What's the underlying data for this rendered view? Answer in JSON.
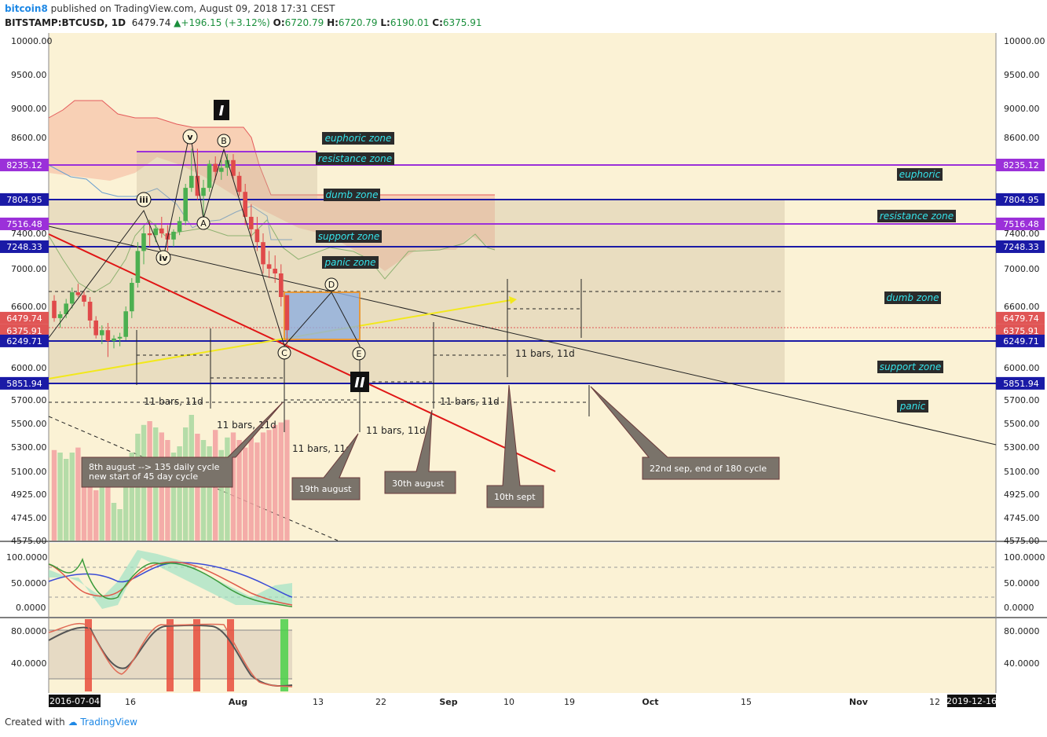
{
  "header": {
    "author": "bitcoin8",
    "published": "published on TradingView.com, August 09, 2018 17:31 CEST",
    "symbol": "BITSTAMP:BTCUSD, 1D",
    "last": "6479.74",
    "change": "+196.15 (+3.12%)",
    "o_label": "O:",
    "o": "6720.79",
    "h_label": "H:",
    "h": "6720.79",
    "l_label": "L:",
    "l": "6190.01",
    "c_label": "C:",
    "c": "6375.91"
  },
  "footer": {
    "created": "Created with",
    "brand": "TradingView"
  },
  "colors": {
    "chart_bg": "#fbf2d5",
    "price_axis_blue": "#1a1aa6",
    "price_axis_purple": "#9b30d9",
    "current_price": "#e05555",
    "zone_tag_bg": "#2b2b2b",
    "zone_tag_text": "#35e3ea",
    "callout_bg": "#7a736a"
  },
  "chart_data": {
    "type": "candlestick",
    "price_axis": {
      "min": 4575,
      "max": 10000,
      "ticks": [
        "10000.00",
        "9500.00",
        "9000.00",
        "8600.00",
        "7400.00",
        "7000.00",
        "6600.00",
        "6000.00",
        "5700.00",
        "5500.00",
        "5300.00",
        "5100.00",
        "4925.00",
        "4745.00",
        "4575.00"
      ]
    },
    "time_axis": {
      "start_label": "2016-07-04",
      "end_label": "2019-12-16",
      "ticks": [
        "16",
        "Aug",
        "13",
        "22",
        "Sep",
        "10",
        "19",
        "Oct",
        "15",
        "Nov",
        "12"
      ]
    },
    "level_tags": [
      {
        "value": "8235.12",
        "color": "purple"
      },
      {
        "value": "7804.95",
        "color": "blue"
      },
      {
        "value": "7516.48",
        "color": "purple"
      },
      {
        "value": "7248.33",
        "color": "blue"
      },
      {
        "value": "6479.74",
        "color": "red"
      },
      {
        "value": "6375.91",
        "color": "red"
      },
      {
        "value": "6249.71",
        "color": "blue"
      },
      {
        "value": "5851.94",
        "color": "blue"
      }
    ],
    "zones_left": [
      "euphoric zone",
      "resistance zone",
      "dumb zone",
      "support zone",
      "panic zone"
    ],
    "zones_right": [
      "euphoric",
      "resistance zone",
      "dumb zone",
      "support zone",
      "panic"
    ],
    "wave_labels": [
      "iii",
      "iv",
      "v",
      "A",
      "B",
      "C",
      "D",
      "E"
    ],
    "roman_labels": [
      "I",
      "II"
    ],
    "bar_count_labels": [
      "11 bars, 11d",
      "11 bars, 11d",
      "11 bars, 11d",
      "11 bars, 11d",
      "11 bars, 11d",
      "11 bars, 11d"
    ],
    "callouts": [
      "8th august --> 135 daily cycle",
      "new start of 45 day cycle",
      "19th august",
      "30th august",
      "10th sept",
      "22nd sep, end of 180 cycle"
    ],
    "candles": [
      [
        6.66,
        6.72,
        6.45,
        6.48
      ],
      [
        6.48,
        6.55,
        6.4,
        6.52
      ],
      [
        6.52,
        6.68,
        6.48,
        6.63
      ],
      [
        6.63,
        6.8,
        6.58,
        6.75
      ],
      [
        6.75,
        6.84,
        6.7,
        6.72
      ],
      [
        6.72,
        6.76,
        6.6,
        6.65
      ],
      [
        6.65,
        6.7,
        6.4,
        6.46
      ],
      [
        6.46,
        6.5,
        6.28,
        6.32
      ],
      [
        6.32,
        6.42,
        6.22,
        6.38
      ],
      [
        6.38,
        6.44,
        6.1,
        6.25
      ],
      [
        6.25,
        6.32,
        6.18,
        6.28
      ],
      [
        6.28,
        6.35,
        6.2,
        6.3
      ],
      [
        6.3,
        6.6,
        6.26,
        6.55
      ],
      [
        6.55,
        6.9,
        6.48,
        6.85
      ],
      [
        6.85,
        7.3,
        6.8,
        7.2
      ],
      [
        7.2,
        7.5,
        7.05,
        7.4
      ],
      [
        7.4,
        7.55,
        7.25,
        7.38
      ],
      [
        7.38,
        7.52,
        7.3,
        7.46
      ],
      [
        7.46,
        7.6,
        7.35,
        7.4
      ],
      [
        7.4,
        7.5,
        7.2,
        7.33
      ],
      [
        7.33,
        7.45,
        7.25,
        7.42
      ],
      [
        7.42,
        7.6,
        7.38,
        7.55
      ],
      [
        7.55,
        8.0,
        7.5,
        7.95
      ],
      [
        7.95,
        8.45,
        7.9,
        8.1
      ],
      [
        8.1,
        8.45,
        7.8,
        7.85
      ],
      [
        7.85,
        8.05,
        7.6,
        7.95
      ],
      [
        7.95,
        8.3,
        7.9,
        8.25
      ],
      [
        8.25,
        8.35,
        8.05,
        8.15
      ],
      [
        8.15,
        8.3,
        8.05,
        8.2
      ],
      [
        8.2,
        8.38,
        8.1,
        8.3
      ],
      [
        8.3,
        8.38,
        8.05,
        8.1
      ],
      [
        8.1,
        8.15,
        7.85,
        7.9
      ],
      [
        7.9,
        8.0,
        7.5,
        7.6
      ],
      [
        7.6,
        7.75,
        7.35,
        7.45
      ],
      [
        7.45,
        7.6,
        7.2,
        7.3
      ],
      [
        7.3,
        7.4,
        6.95,
        7.05
      ],
      [
        7.05,
        7.2,
        6.9,
        7.0
      ],
      [
        7.0,
        7.15,
        6.85,
        6.95
      ],
      [
        6.95,
        7.05,
        6.6,
        6.7
      ],
      [
        6.72,
        6.72,
        6.19,
        6.38
      ]
    ],
    "volume_bars": [
      0.72,
      0.7,
      0.65,
      0.7,
      0.74,
      0.62,
      0.5,
      0.4,
      0.45,
      0.55,
      0.3,
      0.25,
      0.55,
      0.7,
      0.85,
      0.92,
      0.95,
      0.9,
      0.86,
      0.8,
      0.7,
      0.75,
      0.9,
      1.0,
      0.85,
      0.8,
      0.75,
      0.88,
      0.72,
      0.82,
      0.86,
      0.8,
      0.74,
      0.82,
      0.78,
      0.86,
      0.88,
      0.92,
      0.94,
      0.96
    ]
  },
  "indicators": {
    "osc1_ticks": [
      "100.0000",
      "50.0000",
      "0.0000"
    ],
    "osc2_ticks": [
      "80.0000",
      "40.0000"
    ]
  }
}
